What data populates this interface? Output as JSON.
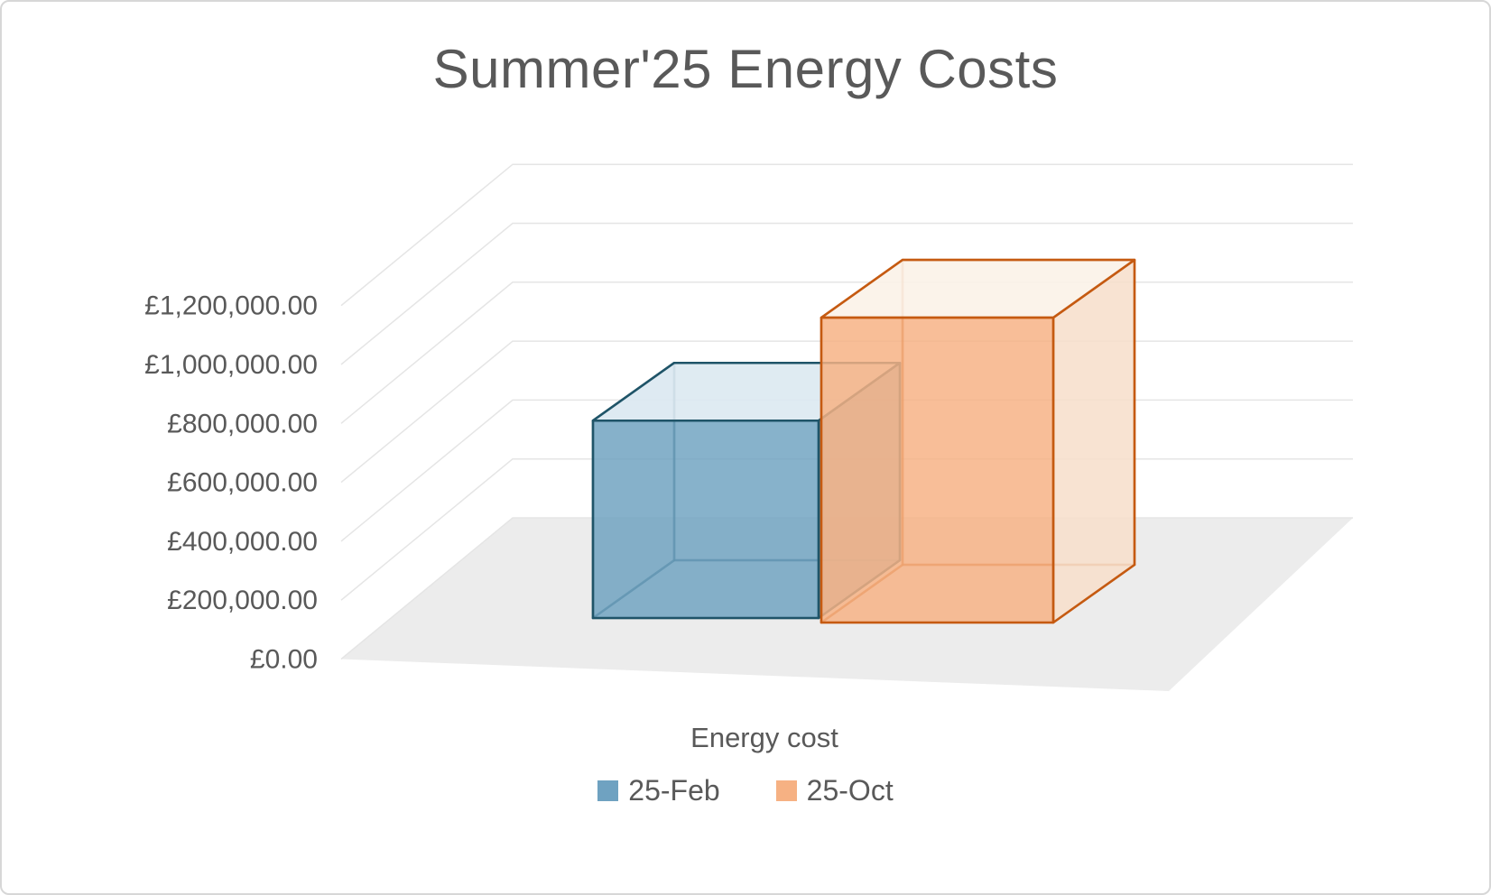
{
  "title": "Summer'25 Energy Costs",
  "colors": {
    "background": "#FFFFFF",
    "border": "#D7D7D7",
    "text": "#595959",
    "floor": "#ECECEC",
    "gridline": "#E5E5E5"
  },
  "chart_data": {
    "type": "bar",
    "variant": "3d-column",
    "title": "Summer'25 Energy Costs",
    "categories": [
      "Energy cost"
    ],
    "series": [
      {
        "name": "25-Feb",
        "values": [
          670000
        ],
        "fill": "#6FA2C1",
        "top_fill": "#DEEAF2",
        "side_fill": "#8FB0C5",
        "stroke": "#1F5468"
      },
      {
        "name": "25-Oct",
        "values": [
          1035000
        ],
        "fill": "#F6B183",
        "top_fill": "#FBF3EA",
        "side_fill": "#F7E1CE",
        "stroke": "#C55A11"
      }
    ],
    "xlabel": "Energy cost",
    "ylabel": "",
    "ylim": [
      0,
      1200000
    ],
    "ytick_step": 200000,
    "ytick_labels": [
      "£0.00",
      "£200,000.00",
      "£400,000.00",
      "£600,000.00",
      "£800,000.00",
      "£1,000,000.00",
      "£1,200,000.00"
    ],
    "currency": "£",
    "grid": true,
    "legend_position": "bottom"
  }
}
